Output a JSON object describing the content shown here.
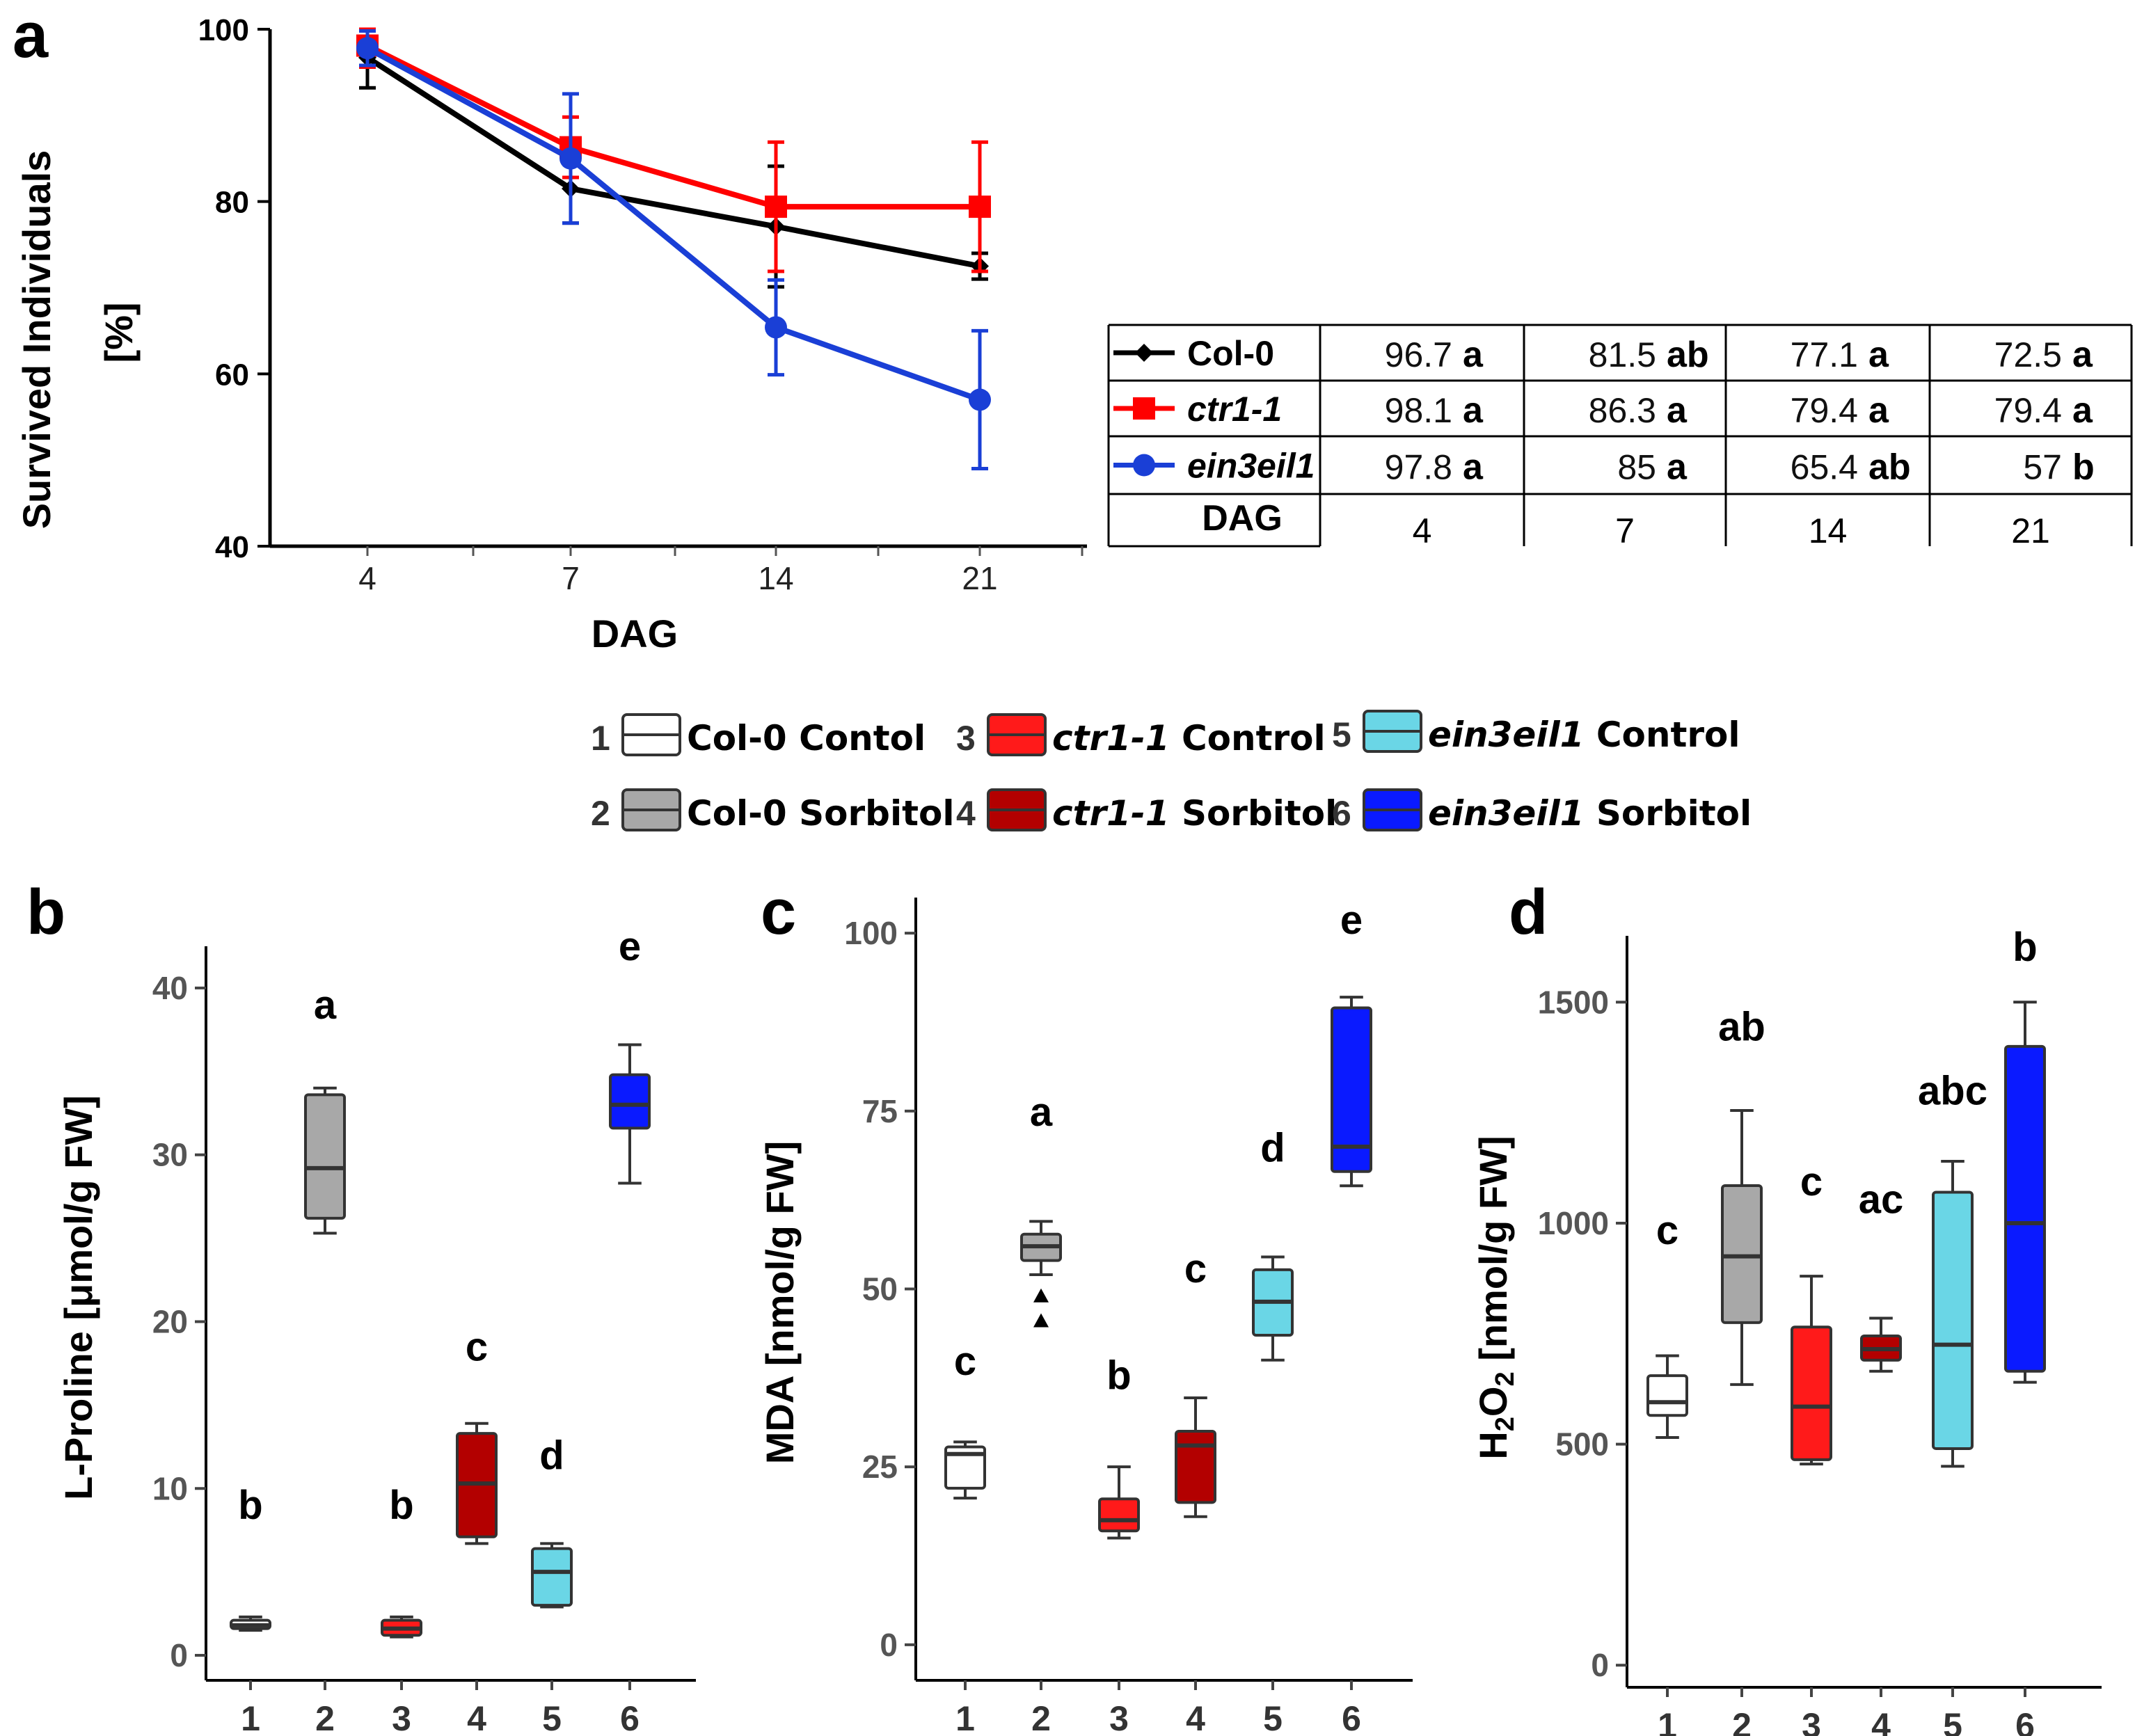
{
  "panel_labels": {
    "a": "a",
    "b": "b",
    "c": "c",
    "d": "d"
  },
  "colors": {
    "col0": "#000000",
    "ctr1": "#ff0000",
    "ein3": "#1a3fd6",
    "box": [
      "#ffffff",
      "#a8a8a8",
      "#ff1a1a",
      "#b30000",
      "#6ad6e6",
      "#0a1aff"
    ]
  },
  "chart_data": [
    {
      "id": "a",
      "type": "line",
      "title": "",
      "xlabel": "DAG",
      "ylabel_line1": "Survived Individuals",
      "ylabel_line2": "[%]",
      "categories": [
        "4",
        "7",
        "14",
        "21"
      ],
      "ylim": [
        40,
        100
      ],
      "yticks": [
        "40",
        "60",
        "80",
        "100"
      ],
      "series": [
        {
          "name": "Col-0",
          "italic": false,
          "marker": "diamond",
          "values": [
            96.7,
            81.5,
            77.1,
            72.5
          ],
          "err": [
            3.5,
            4,
            7,
            1.5
          ],
          "letters": [
            "a",
            "ab",
            "a",
            "a"
          ]
        },
        {
          "name": "ctr1-1",
          "italic": true,
          "marker": "square",
          "values": [
            98.1,
            86.3,
            79.4,
            79.4
          ],
          "err": [
            2.5,
            3.5,
            7.5,
            7.5
          ],
          "letters": [
            "a",
            "a",
            "a",
            "a"
          ]
        },
        {
          "name": "ein3eil1",
          "italic": true,
          "marker": "circle",
          "values": [
            97.8,
            85,
            65.4,
            57
          ],
          "err": [
            2,
            7.5,
            5.5,
            8
          ],
          "letters": [
            "a",
            "a",
            "ab",
            "b"
          ]
        }
      ],
      "table": {
        "dag_label": "DAG",
        "rows": [
          [
            "96.7",
            "81.5",
            "77.1",
            "72.5"
          ],
          [
            "98.1",
            "86.3",
            "79.4",
            "79.4"
          ],
          [
            "97.8",
            "85",
            "65.4",
            "57"
          ]
        ]
      }
    },
    {
      "id": "b",
      "type": "box",
      "ylabel": "L-Proline [μmol/g FW]",
      "ylim": [
        -1.5,
        42.5
      ],
      "yticks": [
        "0",
        "10",
        "20",
        "30",
        "40"
      ],
      "categories": [
        "1",
        "2",
        "3",
        "4",
        "5",
        "6"
      ],
      "boxes": [
        {
          "min": 1.5,
          "q1": 1.6,
          "median": 1.8,
          "q3": 2.1,
          "max": 2.3,
          "letter": "b"
        },
        {
          "min": 25.3,
          "q1": 26.2,
          "median": 29.2,
          "q3": 33.6,
          "max": 34,
          "letter": "a"
        },
        {
          "min": 1.1,
          "q1": 1.2,
          "median": 1.6,
          "q3": 2.1,
          "max": 2.3,
          "letter": "b"
        },
        {
          "min": 6.7,
          "q1": 7.1,
          "median": 10.3,
          "q3": 13.3,
          "max": 13.9,
          "letter": "c"
        },
        {
          "min": 2.9,
          "q1": 3,
          "median": 5,
          "q3": 6.4,
          "max": 6.7,
          "letter": "d"
        },
        {
          "min": 28.3,
          "q1": 31.6,
          "median": 33,
          "q3": 34.8,
          "max": 36.6,
          "letter": "e"
        }
      ]
    },
    {
      "id": "c",
      "type": "box",
      "ylabel": "MDA [nmol/g FW]",
      "ylim": [
        -5,
        105
      ],
      "yticks": [
        "0",
        "25",
        "50",
        "75",
        "100"
      ],
      "categories": [
        "1",
        "2",
        "3",
        "4",
        "5",
        "6"
      ],
      "boxes": [
        {
          "min": 20.6,
          "q1": 22,
          "median": 26.8,
          "q3": 27.8,
          "max": 28.5,
          "letter": "c"
        },
        {
          "min": 52,
          "q1": 54,
          "median": 56,
          "q3": 57.7,
          "max": 59.5,
          "letter": "a",
          "outliers": [
            49,
            45.5
          ]
        },
        {
          "min": 15,
          "q1": 16,
          "median": 17.5,
          "q3": 20.5,
          "max": 25,
          "letter": "b"
        },
        {
          "min": 18,
          "q1": 20,
          "median": 28,
          "q3": 30,
          "max": 34.7,
          "letter": "c"
        },
        {
          "min": 40,
          "q1": 43.5,
          "median": 48.2,
          "q3": 52.7,
          "max": 54.5,
          "letter": "d"
        },
        {
          "min": 64.5,
          "q1": 66.5,
          "median": 70,
          "q3": 89.5,
          "max": 91,
          "letter": "e"
        }
      ]
    },
    {
      "id": "d",
      "type": "box",
      "ylabel": "H2O2 [nmol/g FW]",
      "ylabel_h": "H",
      "ylabel_2a": "2",
      "ylabel_o": "O",
      "ylabel_2b": "2",
      "ylabel_rest": " [nmol/g FW]",
      "ylim": [
        -50,
        1650
      ],
      "yticks": [
        "0",
        "500",
        "1000",
        "1500"
      ],
      "categories": [
        "1",
        "2",
        "3",
        "4",
        "5",
        "6"
      ],
      "boxes": [
        {
          "min": 515,
          "q1": 565,
          "median": 595,
          "q3": 655,
          "max": 700,
          "letter": "c"
        },
        {
          "min": 635,
          "q1": 775,
          "median": 925,
          "q3": 1085,
          "max": 1255,
          "letter": "ab"
        },
        {
          "min": 455,
          "q1": 465,
          "median": 585,
          "q3": 765,
          "max": 880,
          "letter": "c"
        },
        {
          "min": 665,
          "q1": 690,
          "median": 715,
          "q3": 745,
          "max": 785,
          "letter": "ac"
        },
        {
          "min": 450,
          "q1": 490,
          "median": 725,
          "q3": 1070,
          "max": 1140,
          "letter": "abc"
        },
        {
          "min": 640,
          "q1": 665,
          "median": 1000,
          "q3": 1400,
          "max": 1500,
          "letter": "b"
        }
      ]
    }
  ],
  "legend": [
    {
      "num": "1",
      "name": "Col-0",
      "italic": false,
      "cond": "Contol"
    },
    {
      "num": "2",
      "name": "Col-0",
      "italic": false,
      "cond": "Sorbitol"
    },
    {
      "num": "3",
      "name": "ctr1-1",
      "italic": true,
      "cond": "Control"
    },
    {
      "num": "4",
      "name": "ctr1-1",
      "italic": true,
      "cond": "Sorbitol"
    },
    {
      "num": "5",
      "name": "ein3eil1",
      "italic": true,
      "cond": "Control"
    },
    {
      "num": "6",
      "name": "ein3eil1",
      "italic": true,
      "cond": "Sorbitol"
    }
  ]
}
